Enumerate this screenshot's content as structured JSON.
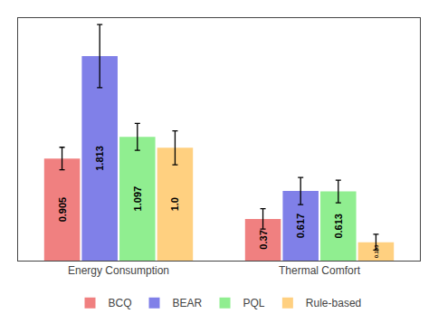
{
  "chart_data": {
    "type": "bar",
    "categories": [
      "Energy Consumption",
      "Thermal Comfort"
    ],
    "series": [
      {
        "name": "BCQ",
        "color": "#F08080",
        "values": [
          0.905,
          0.37
        ],
        "errors": [
          0.1,
          0.09
        ]
      },
      {
        "name": "BEAR",
        "color": "#8080E8",
        "values": [
          1.813,
          0.617
        ],
        "errors": [
          0.28,
          0.12
        ]
      },
      {
        "name": "PQL",
        "color": "#90EE90",
        "values": [
          1.097,
          0.613
        ],
        "errors": [
          0.12,
          0.1
        ]
      },
      {
        "name": "Rule-based",
        "color": "#FFD080",
        "values": [
          1.0,
          0.163
        ],
        "value_labels": [
          "1.0",
          "0.163"
        ],
        "errors": [
          0.15,
          0.07
        ]
      }
    ],
    "ylim": [
      0,
      2.15
    ],
    "tick_labels": "x",
    "grid": false,
    "legend": "bottom",
    "data_labels": true
  }
}
